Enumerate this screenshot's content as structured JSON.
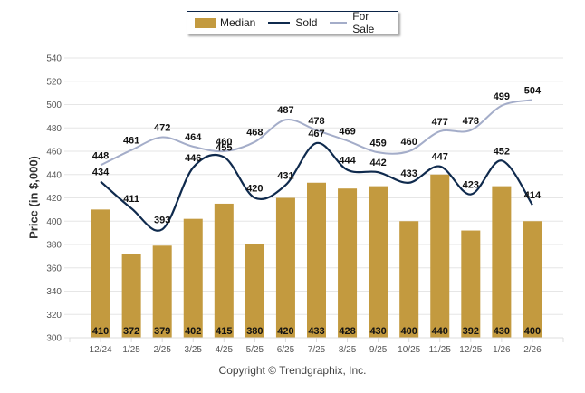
{
  "chart_data": {
    "type": "bar",
    "title": "",
    "xlabel": "",
    "ylabel": "Price (in $,000)",
    "ylim": [
      300,
      540
    ],
    "yticks": [
      300,
      320,
      340,
      360,
      380,
      400,
      420,
      440,
      460,
      480,
      500,
      520,
      540
    ],
    "grid": true,
    "legend_position": "top-center",
    "categories": [
      "12/24",
      "1/25",
      "2/25",
      "3/25",
      "4/25",
      "5/25",
      "6/25",
      "7/25",
      "8/25",
      "9/25",
      "10/25",
      "11/25",
      "12/25",
      "1/26",
      "2/26"
    ],
    "series": [
      {
        "name": "Median",
        "type": "bar",
        "color": "#c39a3f",
        "values": [
          410,
          372,
          379,
          402,
          415,
          380,
          420,
          433,
          428,
          430,
          400,
          440,
          392,
          430,
          400
        ]
      },
      {
        "name": "Sold",
        "type": "line",
        "color": "#0f2a4d",
        "values": [
          434,
          411,
          393,
          446,
          455,
          420,
          431,
          467,
          444,
          442,
          433,
          447,
          423,
          452,
          414
        ]
      },
      {
        "name": "For Sale",
        "type": "line",
        "color": "#a4adc9",
        "values": [
          448,
          461,
          472,
          464,
          460,
          468,
          487,
          478,
          469,
          459,
          460,
          477,
          478,
          499,
          504
        ]
      }
    ]
  },
  "legend": {
    "items": [
      {
        "label": "Median",
        "kind": "bar",
        "color": "#c39a3f"
      },
      {
        "label": "Sold",
        "kind": "line",
        "color": "#0f2a4d"
      },
      {
        "label": "For Sale",
        "kind": "line",
        "color": "#a4adc9"
      }
    ]
  },
  "copyright": "Copyright © Trendgraphix, Inc."
}
